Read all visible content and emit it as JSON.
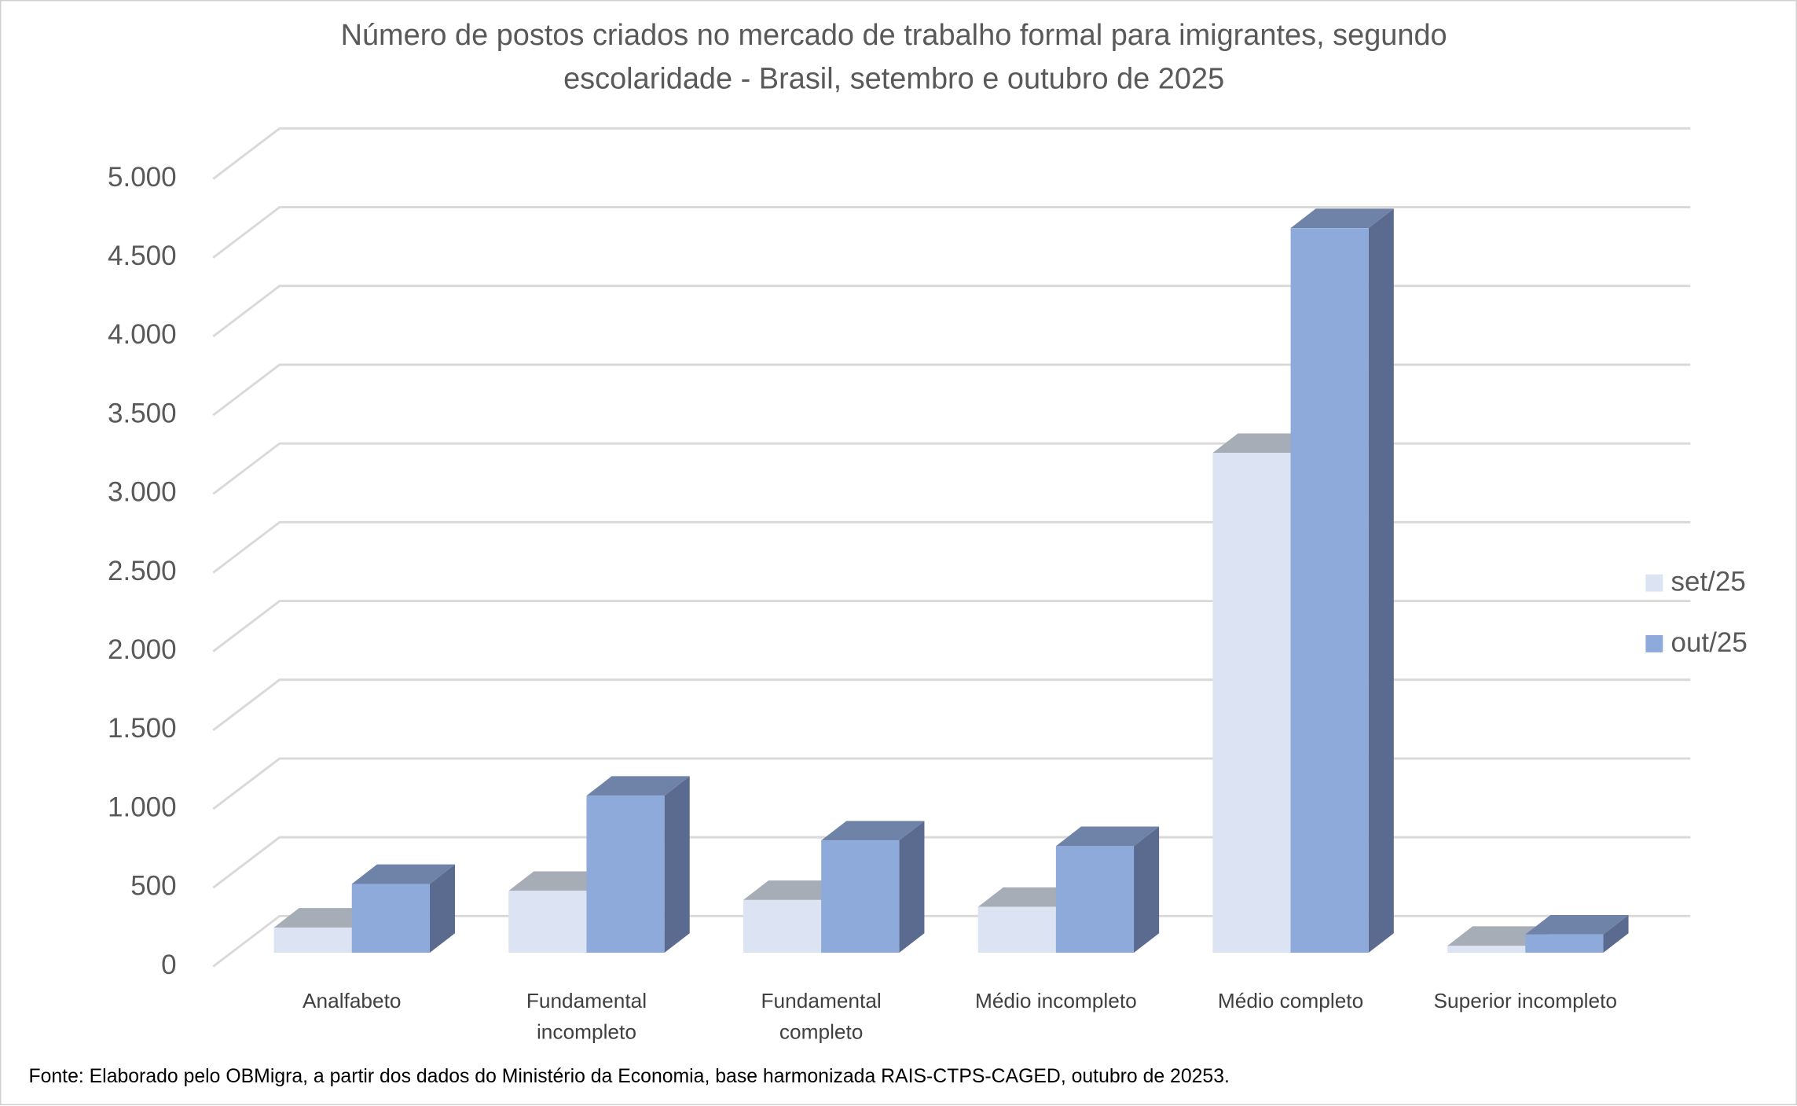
{
  "chart_data": {
    "type": "bar3d",
    "title": "Número de postos criados no mercado de trabalho formal para imigrantes, segundo escolaridade - Brasil, setembro e outubro de 2025",
    "categories": [
      "Analfabeto",
      "Fundamental incompleto",
      "Fundamental completo",
      "Médio incompleto",
      "Médio completo",
      "Superior incompleto"
    ],
    "series": [
      {
        "name": "set/25",
        "color": "#dce3f3",
        "values": [
          160,
          393,
          335,
          291,
          3173,
          44
        ]
      },
      {
        "name": "out/25",
        "color": "#8eaadb",
        "values": [
          437,
          997,
          713,
          677,
          4600,
          116
        ]
      }
    ],
    "ylim": [
      0,
      5000
    ],
    "yticks": [
      0,
      500,
      {
        "value": 1000,
        "label": "1.000"
      },
      {
        "value": 1500,
        "label": "1.500"
      },
      {
        "value": 2000,
        "label": "2.000"
      },
      {
        "value": 2500,
        "label": "2.500"
      },
      {
        "value": 3000,
        "label": "3.000"
      },
      {
        "value": 3500,
        "label": "3.500"
      },
      {
        "value": 4000,
        "label": "4.000"
      },
      {
        "value": 4500,
        "label": "4.500"
      },
      {
        "value": 5000,
        "label": "5.000"
      }
    ],
    "grid": true,
    "legend": "right",
    "source": "Fonte: Elaborado pelo OBMigra,  a partir dos dados do Ministério da Economia, base harmonizada RAIS-CTPS-CAGED, outubro de 20253."
  }
}
